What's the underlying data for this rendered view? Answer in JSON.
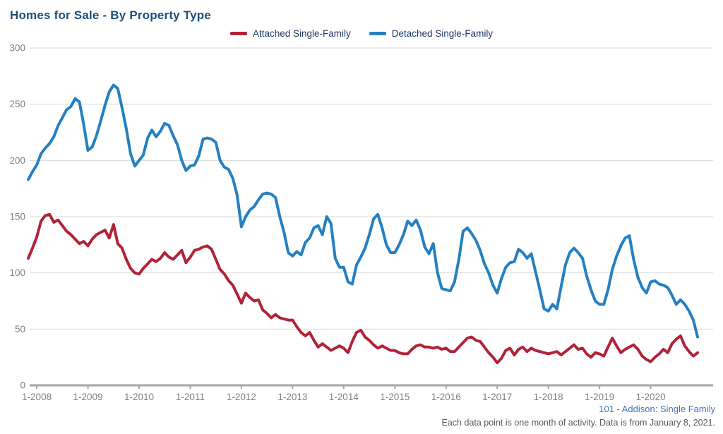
{
  "page": {
    "title": "Homes for Sale - By Property Type",
    "footer": {
      "source_label": "101 - Addison: Single Family",
      "note": "Each data point is one month of activity. Data is from January 8, 2021."
    }
  },
  "colors": {
    "title": "#1f4e79",
    "legend_text": "#1f3864",
    "attached_series": "#b02338",
    "detached_series": "#2480c2",
    "gridline": "#d9d9d9",
    "axis": "#a6a6a6",
    "tick_label": "#808080",
    "footer_link": "#4472c4",
    "footer_note": "#595959"
  },
  "chart_data": {
    "type": "line",
    "title": "Homes for Sale - By Property Type",
    "xlabel": "",
    "ylabel": "",
    "frequency": "monthly",
    "x_start_month": "2007-11",
    "x_end_month": "2020-12",
    "x_tick_labels": [
      "1-2008",
      "1-2009",
      "1-2010",
      "1-2011",
      "1-2012",
      "1-2013",
      "1-2014",
      "1-2015",
      "1-2016",
      "1-2017",
      "1-2018",
      "1-2019",
      "1-2020"
    ],
    "x_tick_month_indices": [
      2,
      14,
      26,
      38,
      50,
      62,
      74,
      86,
      98,
      110,
      122,
      134,
      146
    ],
    "y_ticks": [
      0,
      50,
      100,
      150,
      200,
      250,
      300
    ],
    "ylim": [
      0,
      300
    ],
    "grid": "horizontal-only",
    "legend_position": "top-center",
    "series": [
      {
        "name": "Attached Single-Family",
        "color": "#b02338",
        "values": [
          113,
          122,
          132,
          146,
          151,
          152,
          145,
          147,
          142,
          137,
          134,
          130,
          126,
          128,
          124,
          130,
          134,
          136,
          138,
          131,
          143,
          126,
          122,
          112,
          104,
          100,
          99,
          104,
          108,
          112,
          110,
          113,
          118,
          114,
          112,
          116,
          120,
          109,
          114,
          120,
          121,
          123,
          124,
          121,
          112,
          103,
          99,
          93,
          89,
          81,
          73,
          82,
          78,
          75,
          76,
          67,
          64,
          60,
          63,
          60,
          59,
          58,
          58,
          52,
          47,
          44,
          47,
          40,
          34,
          37,
          34,
          31,
          33,
          35,
          33,
          29,
          39,
          47,
          49,
          43,
          40,
          36,
          33,
          35,
          33,
          31,
          31,
          29,
          28,
          28,
          32,
          35,
          36,
          34,
          34,
          33,
          34,
          32,
          33,
          30,
          30,
          34,
          38,
          42,
          43,
          40,
          39,
          34,
          29,
          25,
          20,
          24,
          31,
          33,
          27,
          32,
          34,
          30,
          33,
          31,
          30,
          29,
          28,
          29,
          30,
          27,
          30,
          33,
          36,
          32,
          33,
          28,
          25,
          29,
          28,
          26,
          34,
          42,
          35,
          29,
          32,
          34,
          36,
          32,
          26,
          23,
          21,
          25,
          28,
          32,
          29,
          37,
          41,
          44,
          35,
          30,
          26,
          29
        ]
      },
      {
        "name": "Detached Single-Family",
        "color": "#2480c2",
        "values": [
          183,
          190,
          196,
          206,
          211,
          215,
          221,
          231,
          238,
          245,
          248,
          255,
          252,
          232,
          209,
          212,
          222,
          235,
          249,
          261,
          267,
          264,
          247,
          228,
          206,
          195,
          200,
          205,
          220,
          227,
          221,
          226,
          233,
          231,
          222,
          214,
          200,
          191,
          195,
          196,
          204,
          219,
          220,
          219,
          216,
          200,
          194,
          192,
          184,
          169,
          141,
          150,
          156,
          159,
          165,
          170,
          171,
          170,
          167,
          150,
          136,
          118,
          115,
          119,
          116,
          127,
          131,
          140,
          142,
          134,
          150,
          144,
          113,
          105,
          105,
          92,
          90,
          107,
          114,
          122,
          134,
          148,
          152,
          140,
          125,
          118,
          118,
          125,
          134,
          146,
          142,
          147,
          138,
          123,
          117,
          126,
          100,
          86,
          85,
          84,
          92,
          112,
          137,
          140,
          135,
          129,
          120,
          108,
          100,
          89,
          82,
          95,
          105,
          109,
          110,
          121,
          118,
          113,
          117,
          101,
          85,
          68,
          66,
          72,
          68,
          88,
          107,
          118,
          122,
          118,
          113,
          97,
          85,
          75,
          72,
          72,
          85,
          103,
          115,
          124,
          131,
          133,
          112,
          96,
          87,
          82,
          92,
          93,
          90,
          89,
          87,
          80,
          72,
          76,
          72,
          66,
          58,
          43
        ]
      }
    ]
  }
}
